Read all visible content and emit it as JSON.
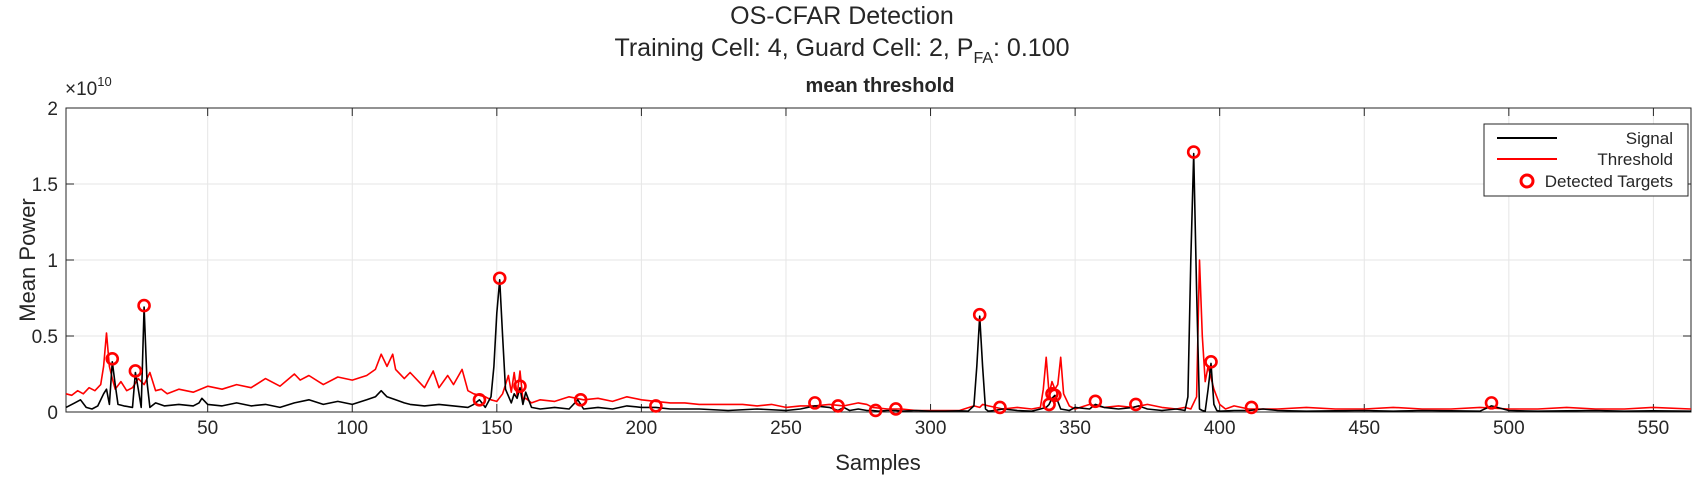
{
  "figure": {
    "suptitle_line1": "OS-CFAR  Detection",
    "suptitle_line2_prefix": "Training  Cell:  4,  Guard  Cell:  2,  P",
    "suptitle_line2_sub": "FA",
    "suptitle_line2_suffix": ":  0.100"
  },
  "chart_data": {
    "type": "line",
    "title": "mean threshold",
    "xlabel": "Samples",
    "ylabel": "Mean Power",
    "y_exponent_label": "×10",
    "y_exponent_power": "10",
    "y_scale_factor": 10000000000.0,
    "xlim": [
      1,
      563
    ],
    "ylim": [
      0,
      20000000000.0
    ],
    "grid": true,
    "legend_position": "top-right",
    "x_ticks": [
      50,
      100,
      150,
      200,
      250,
      300,
      350,
      400,
      450,
      500,
      550
    ],
    "x_tick_labels": [
      "50",
      "100",
      "150",
      "200",
      "250",
      "300",
      "350",
      "400",
      "450",
      "500",
      "550"
    ],
    "y_ticks": [
      0,
      5000000000.0,
      10000000000.0,
      15000000000.0,
      20000000000.0
    ],
    "y_tick_labels": [
      "0",
      "0.5",
      "1",
      "1.5",
      "2"
    ],
    "legend": [
      {
        "label": "Signal",
        "color": "#000000",
        "marker": "line"
      },
      {
        "label": "Threshold",
        "color": "#ff0000",
        "marker": "line"
      },
      {
        "label": "Detected Targets",
        "color": "#ff0000",
        "marker": "circle"
      }
    ],
    "series": [
      {
        "name": "Signal",
        "color": "#000000",
        "x": [
          1,
          4,
          6,
          8,
          10,
          12,
          14,
          15,
          16,
          17,
          18,
          19,
          21,
          24,
          25,
          26,
          27,
          28,
          29,
          30,
          32,
          35,
          40,
          45,
          47,
          48,
          50,
          55,
          60,
          65,
          70,
          75,
          80,
          85,
          90,
          95,
          100,
          105,
          108,
          110,
          111,
          112,
          115,
          118,
          120,
          125,
          130,
          135,
          140,
          142,
          144,
          146,
          148,
          149,
          150,
          151,
          152,
          153,
          155,
          156,
          157,
          158,
          159,
          160,
          162,
          165,
          170,
          175,
          178,
          180,
          185,
          190,
          195,
          200,
          205,
          210,
          220,
          230,
          240,
          250,
          255,
          260,
          265,
          268,
          270,
          272,
          275,
          278,
          280,
          282,
          285,
          288,
          290,
          295,
          300,
          305,
          310,
          313,
          315,
          316,
          317,
          318,
          319,
          320,
          322,
          325,
          330,
          335,
          338,
          340,
          341,
          342,
          343,
          344,
          345,
          348,
          350,
          355,
          357,
          360,
          365,
          370,
          372,
          375,
          380,
          385,
          388,
          389,
          390,
          391,
          392,
          393,
          394,
          395,
          396,
          397,
          398,
          399,
          400,
          405,
          410,
          415,
          420,
          430,
          440,
          450,
          460,
          470,
          480,
          490,
          494,
          500,
          510,
          520,
          530,
          540,
          550,
          563
        ],
        "values": [
          300000000.0,
          600000000.0,
          800000000.0,
          300000000.0,
          200000000.0,
          400000000.0,
          1200000000.0,
          1500000000.0,
          500000000.0,
          3300000000.0,
          1800000000.0,
          500000000.0,
          400000000.0,
          300000000.0,
          2600000000.0,
          1500000000.0,
          300000000.0,
          6900000000.0,
          2000000000.0,
          300000000.0,
          600000000.0,
          400000000.0,
          500000000.0,
          400000000.0,
          600000000.0,
          900000000.0,
          500000000.0,
          400000000.0,
          600000000.0,
          400000000.0,
          500000000.0,
          300000000.0,
          600000000.0,
          800000000.0,
          500000000.0,
          700000000.0,
          500000000.0,
          800000000.0,
          1000000000.0,
          1400000000.0,
          1200000000.0,
          1000000000.0,
          800000000.0,
          600000000.0,
          500000000.0,
          400000000.0,
          500000000.0,
          400000000.0,
          300000000.0,
          500000000.0,
          800000000.0,
          300000000.0,
          1000000000.0,
          3000000000.0,
          6500000000.0,
          8700000000.0,
          5000000000.0,
          1500000000.0,
          600000000.0,
          1200000000.0,
          900000000.0,
          1600000000.0,
          500000000.0,
          1300000000.0,
          300000000.0,
          200000000.0,
          300000000.0,
          200000000.0,
          800000000.0,
          200000000.0,
          300000000.0,
          200000000.0,
          400000000.0,
          300000000.0,
          300000000.0,
          200000000.0,
          200000000.0,
          100000000.0,
          200000000.0,
          100000000.0,
          200000000.0,
          400000000.0,
          300000000.0,
          100000000.0,
          300000000.0,
          100000000.0,
          200000000.0,
          100000000.0,
          100000000.0,
          50000000.0,
          100000000.0,
          100000000.0,
          50000000.0,
          100000000.0,
          50000000.0,
          50000000.0,
          80000000.0,
          50000000.0,
          400000000.0,
          3000000000.0,
          6300000000.0,
          3000000000.0,
          200000000.0,
          50000000.0,
          100000000.0,
          200000000.0,
          100000000.0,
          50000000.0,
          200000000.0,
          300000000.0,
          500000000.0,
          900000000.0,
          1100000000.0,
          700000000.0,
          200000000.0,
          100000000.0,
          300000000.0,
          200000000.0,
          500000000.0,
          300000000.0,
          200000000.0,
          300000000.0,
          400000000.0,
          200000000.0,
          100000000.0,
          200000000.0,
          100000000.0,
          1000000000.0,
          10000000000.0,
          17000000000.0,
          8000000000.0,
          200000000.0,
          100000000.0,
          50000000.0,
          1500000000.0,
          3200000000.0,
          500000000.0,
          100000000.0,
          50000000.0,
          100000000.0,
          100000000.0,
          200000000.0,
          100000000.0,
          50000000.0,
          80000000.0,
          100000000.0,
          50000000.0,
          100000000.0,
          80000000.0,
          50000000.0,
          400000000.0,
          100000000.0,
          50000000.0,
          80000000.0,
          100000000.0,
          50000000.0,
          80000000.0,
          50000000.0
        ]
      },
      {
        "name": "Threshold",
        "color": "#ff0000",
        "x": [
          1,
          3,
          5,
          7,
          9,
          11,
          13,
          14,
          15,
          16,
          17,
          18,
          20,
          22,
          24,
          26,
          28,
          30,
          32,
          34,
          36,
          40,
          45,
          50,
          55,
          60,
          65,
          70,
          75,
          80,
          82,
          85,
          90,
          95,
          100,
          105,
          108,
          110,
          112,
          114,
          115,
          118,
          120,
          125,
          128,
          130,
          133,
          135,
          138,
          140,
          142,
          144,
          146,
          148,
          150,
          152,
          154,
          155,
          156,
          157,
          158,
          159,
          160,
          162,
          165,
          170,
          175,
          180,
          185,
          190,
          195,
          200,
          205,
          210,
          215,
          220,
          225,
          230,
          235,
          240,
          245,
          250,
          255,
          260,
          265,
          270,
          275,
          278,
          280,
          285,
          290,
          295,
          300,
          305,
          310,
          315,
          317,
          318,
          320,
          325,
          330,
          335,
          338,
          339,
          340,
          341,
          342,
          343,
          344,
          345,
          346,
          348,
          350,
          355,
          360,
          365,
          370,
          375,
          380,
          385,
          388,
          390,
          392,
          393,
          394,
          395,
          396,
          398,
          400,
          402,
          405,
          410,
          420,
          430,
          440,
          450,
          460,
          470,
          480,
          490,
          500,
          510,
          520,
          530,
          540,
          550,
          563
        ],
        "values": [
          1200000000.0,
          1100000000.0,
          1400000000.0,
          1200000000.0,
          1600000000.0,
          1400000000.0,
          1800000000.0,
          3000000000.0,
          5200000000.0,
          3000000000.0,
          2200000000.0,
          1500000000.0,
          2000000000.0,
          1400000000.0,
          1600000000.0,
          2200000000.0,
          1800000000.0,
          2600000000.0,
          1400000000.0,
          1500000000.0,
          1200000000.0,
          1500000000.0,
          1300000000.0,
          1700000000.0,
          1500000000.0,
          1800000000.0,
          1600000000.0,
          2200000000.0,
          1700000000.0,
          2500000000.0,
          2100000000.0,
          2400000000.0,
          1800000000.0,
          2300000000.0,
          2100000000.0,
          2400000000.0,
          2800000000.0,
          3800000000.0,
          3000000000.0,
          3800000000.0,
          2800000000.0,
          2200000000.0,
          2600000000.0,
          1600000000.0,
          2700000000.0,
          1600000000.0,
          2400000000.0,
          1800000000.0,
          2800000000.0,
          1400000000.0,
          1200000000.0,
          1100000000.0,
          1000000000.0,
          800000000.0,
          700000000.0,
          1200000000.0,
          2400000000.0,
          1300000000.0,
          2600000000.0,
          1100000000.0,
          2700000000.0,
          800000000.0,
          900000000.0,
          600000000.0,
          800000000.0,
          700000000.0,
          1000000000.0,
          800000000.0,
          900000000.0,
          700000000.0,
          1000000000.0,
          800000000.0,
          700000000.0,
          600000000.0,
          600000000.0,
          500000000.0,
          500000000.0,
          500000000.0,
          500000000.0,
          400000000.0,
          500000000.0,
          300000000.0,
          400000000.0,
          400000000.0,
          500000000.0,
          400000000.0,
          600000000.0,
          500000000.0,
          300000000.0,
          200000000.0,
          200000000.0,
          100000000.0,
          100000000.0,
          100000000.0,
          100000000.0,
          400000000.0,
          300000000.0,
          500000000.0,
          400000000.0,
          200000000.0,
          300000000.0,
          200000000.0,
          300000000.0,
          1500000000.0,
          3600000000.0,
          1200000000.0,
          2000000000.0,
          1500000000.0,
          1800000000.0,
          3600000000.0,
          1200000000.0,
          400000000.0,
          200000000.0,
          500000000.0,
          300000000.0,
          400000000.0,
          300000000.0,
          500000000.0,
          300000000.0,
          200000000.0,
          300000000.0,
          200000000.0,
          1000000000.0,
          10000000000.0,
          5000000000.0,
          2000000000.0,
          3000000000.0,
          1500000000.0,
          500000000.0,
          200000000.0,
          400000000.0,
          200000000.0,
          200000000.0,
          300000000.0,
          200000000.0,
          200000000.0,
          300000000.0,
          200000000.0,
          200000000.0,
          300000000.0,
          200000000.0,
          200000000.0,
          300000000.0,
          200000000.0,
          200000000.0,
          300000000.0,
          200000000.0
        ]
      },
      {
        "name": "Detected Targets",
        "color": "#ff0000",
        "marker": "circle",
        "x": [
          17,
          25,
          28,
          144,
          151,
          158,
          179,
          205,
          260,
          268,
          281,
          288,
          317,
          324,
          341,
          342,
          343,
          357,
          371,
          391,
          397,
          411,
          494
        ],
        "values": [
          3500000000.0,
          2700000000.0,
          7000000000.0,
          800000000.0,
          8800000000.0,
          1700000000.0,
          800000000.0,
          400000000.0,
          600000000.0,
          400000000.0,
          100000000.0,
          200000000.0,
          6400000000.0,
          300000000.0,
          500000000.0,
          1200000000.0,
          1100000000.0,
          700000000.0,
          500000000.0,
          17100000000.0,
          3300000000.0,
          300000000.0,
          600000000.0
        ]
      }
    ]
  }
}
